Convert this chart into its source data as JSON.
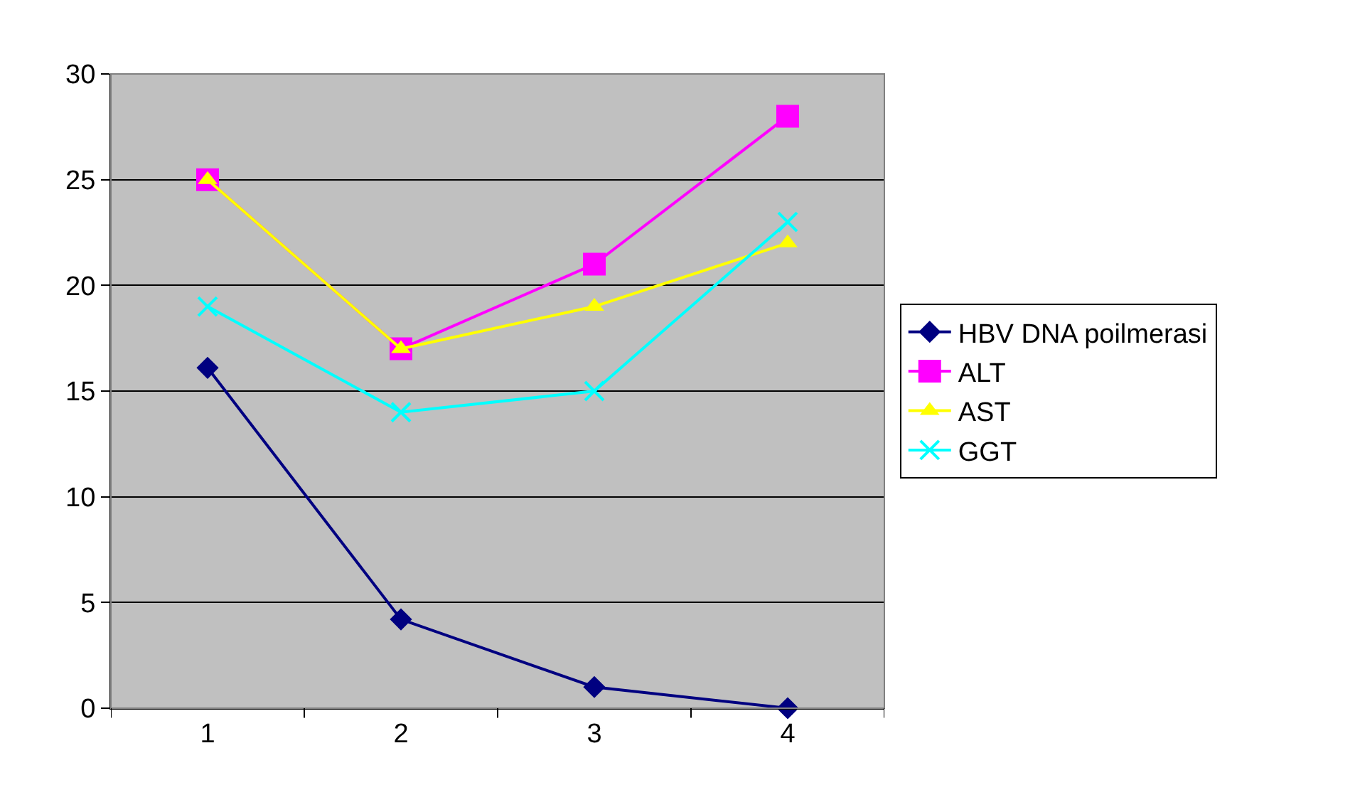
{
  "chart_data": {
    "type": "line",
    "categories": [
      "1",
      "2",
      "3",
      "4"
    ],
    "series": [
      {
        "name": "HBV DNA poilmerasi",
        "color": "#000080",
        "marker": "diamond",
        "values": [
          16.1,
          4.2,
          1,
          0
        ]
      },
      {
        "name": "ALT",
        "color": "#ff00ff",
        "marker": "square",
        "values": [
          25,
          17,
          21,
          28
        ]
      },
      {
        "name": "AST",
        "color": "#ffff00",
        "marker": "triangle",
        "values": [
          25,
          17,
          19,
          22
        ]
      },
      {
        "name": "GGT",
        "color": "#00ffff",
        "marker": "cross",
        "values": [
          19,
          14,
          15,
          23
        ]
      }
    ],
    "ylim": [
      0,
      30
    ],
    "yticks": [
      0,
      5,
      10,
      15,
      20,
      25,
      30
    ],
    "grid": "y",
    "legend": "right",
    "line_style": "solid"
  }
}
